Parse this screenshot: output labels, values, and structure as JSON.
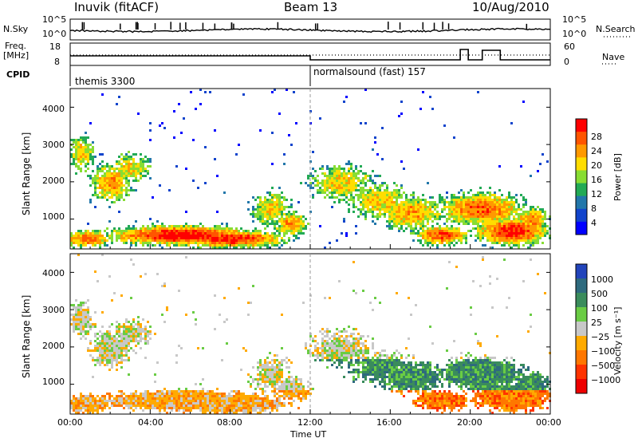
{
  "header": {
    "station": "Inuvik (fitACF)",
    "beam": "Beam 13",
    "date": "10/Aug/2010"
  },
  "nsky_panel": {
    "label": "N.Sky",
    "left_ticks": [
      "10^5",
      "10^0"
    ],
    "right_ticks": [
      "10^5",
      "10^0"
    ],
    "right_label": "N.Search"
  },
  "freq_panel": {
    "label_line1": "Freq.",
    "label_line2": "[MHz]",
    "left_ticks": [
      "18",
      "8"
    ],
    "right_ticks": [
      "60",
      "0"
    ],
    "right_label": "Nave"
  },
  "cpid": {
    "label": "CPID",
    "modes": [
      {
        "name": "themis 3300",
        "start_hour": 0
      },
      {
        "name": "normalsound (fast) 157",
        "start_hour": 12
      }
    ]
  },
  "chart_data": [
    {
      "type": "heatmap",
      "name": "power",
      "ylabel": "Slant Range [km]",
      "yticks": [
        "1000",
        "2000",
        "3000",
        "4000"
      ],
      "ylim": [
        200,
        4500
      ],
      "xlim_hours": [
        0,
        24
      ],
      "colorbar_label": "Power [dB]",
      "colorbar_ticks": [
        "28",
        "24",
        "20",
        "16",
        "12",
        "8",
        "4"
      ],
      "colorbar_colors": [
        "#ff0000",
        "#ff5500",
        "#ff9900",
        "#ffdd00",
        "#88dd33",
        "#22aa55",
        "#2277aa",
        "#1144cc",
        "#0000ff"
      ]
    },
    {
      "type": "heatmap",
      "name": "velocity",
      "ylabel": "Slant Range [km]",
      "yticks": [
        "1000",
        "2000",
        "3000",
        "4000"
      ],
      "ylim": [
        200,
        4500
      ],
      "xlim_hours": [
        0,
        24
      ],
      "xticks": [
        "00:00",
        "04:00",
        "08:00",
        "12:00",
        "16:00",
        "20:00",
        "00:00"
      ],
      "xlabel": "Time UT",
      "colorbar_label": "Velocity [m s⁻¹]",
      "colorbar_ticks": [
        "1000",
        "500",
        "100",
        "25",
        "−25",
        "−100",
        "−500",
        "−1000"
      ],
      "colorbar_colors": [
        "#2244bb",
        "#2e6a7e",
        "#3a8c5c",
        "#6acc44",
        "#c8c8c8",
        "#ffaa00",
        "#ff7700",
        "#ff3300",
        "#ee0000"
      ]
    }
  ]
}
